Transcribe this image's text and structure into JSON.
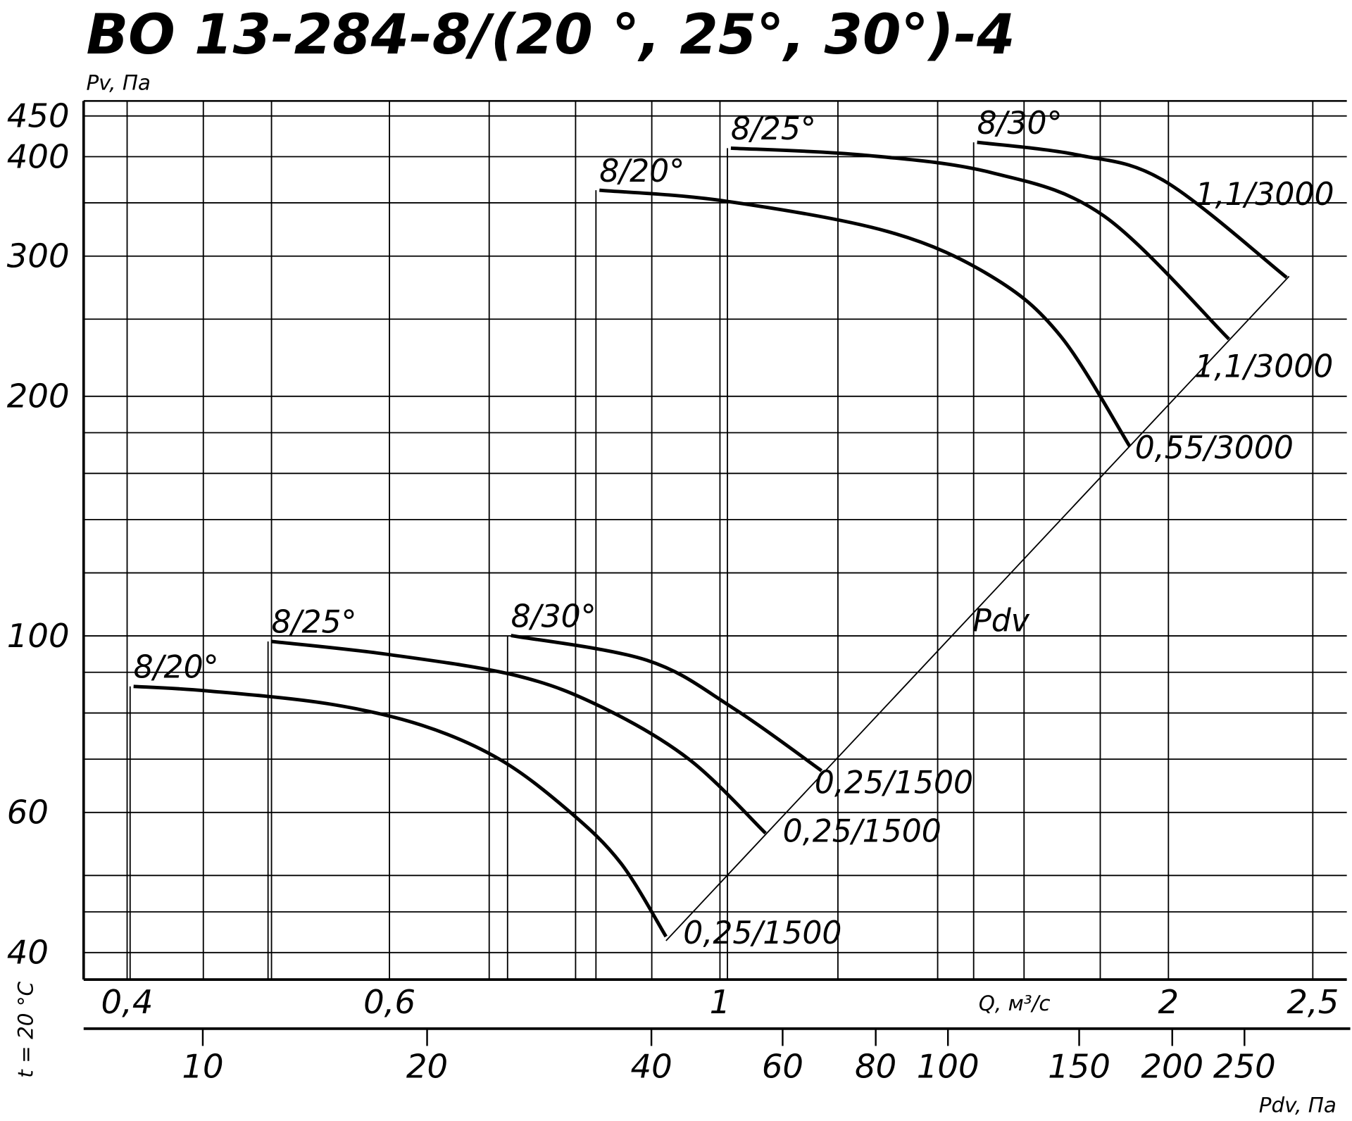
{
  "chart_data": {
    "type": "line",
    "title": "ВО 13-284-8/(20 °, 25°, 30°)-4",
    "y_label": "Pv, Па",
    "x_label": "Q, м³/с",
    "x2_label": "Pdv, Па",
    "condition_label": "t = 20 °C",
    "log_x": true,
    "log_y": true,
    "xlim": [
      0.374,
      2.635
    ],
    "ylim": [
      37,
      470
    ],
    "x2lim": [
      6.92,
      343
    ],
    "xticks": [
      {
        "value": 0.4,
        "label": "0,4"
      },
      {
        "value": 0.6,
        "label": "0,6"
      },
      1,
      2,
      {
        "value": 2.5,
        "label": "2,5"
      }
    ],
    "x2ticks": [
      10,
      20,
      40,
      60,
      80,
      100,
      150,
      200,
      250
    ],
    "yticks": [
      450,
      400,
      300,
      200,
      100,
      60,
      40
    ],
    "xgrid": [
      0.4,
      0.45,
      0.5,
      0.6,
      0.7,
      0.8,
      0.9,
      1,
      1.2,
      1.4,
      1.6,
      1.8,
      2,
      2.5
    ],
    "ygrid": [
      450,
      400,
      350,
      300,
      250,
      200,
      180,
      160,
      140,
      120,
      100,
      90,
      80,
      70,
      60,
      50,
      45,
      40
    ],
    "color": "#000000",
    "series": [
      {
        "name": "8/20°",
        "end_label": "0,25/1500",
        "x": [
          0.404,
          0.452,
          0.545,
          0.631,
          0.712,
          0.792,
          0.858,
          0.92
        ],
        "values": [
          86.4,
          85.3,
          82.2,
          77.2,
          69.9,
          60.2,
          51.8,
          41.9
        ]
      },
      {
        "name": "8/25°",
        "end_label": "0,25/1500",
        "x": [
          0.5,
          0.598,
          0.731,
          0.835,
          0.954,
          1.073
        ],
        "values": [
          98.4,
          94.8,
          89.1,
          81.2,
          69.9,
          56.5
        ]
      },
      {
        "name": "8/30°",
        "end_label": "0,25/1500",
        "x": [
          0.724,
          0.893,
          1.02,
          1.17
        ],
        "values": [
          100.1,
          93.2,
          81.2,
          67.7
        ]
      },
      {
        "name": "8/20°",
        "end_label": "0,55/3000",
        "x": [
          0.83,
          1.006,
          1.297,
          1.521,
          1.693,
          1.884
        ],
        "values": [
          363,
          352,
          322,
          283,
          238,
          173
        ]
      },
      {
        "name": "8/25°",
        "end_label": "1,1/3000",
        "x": [
          1.017,
          1.246,
          1.521,
          1.81,
          2.196
        ],
        "values": [
          410,
          402,
          382,
          337,
          236
        ]
      },
      {
        "name": "8/30°",
        "end_label": "1,1/3000",
        "x": [
          1.488,
          1.739,
          1.987,
          2.401
        ],
        "values": [
          417,
          402,
          373,
          282
        ]
      }
    ],
    "pdv_line": {
      "label": "Pdv",
      "x": [
        0.92,
        2.41
      ],
      "values": [
        41.4,
        283
      ]
    }
  }
}
